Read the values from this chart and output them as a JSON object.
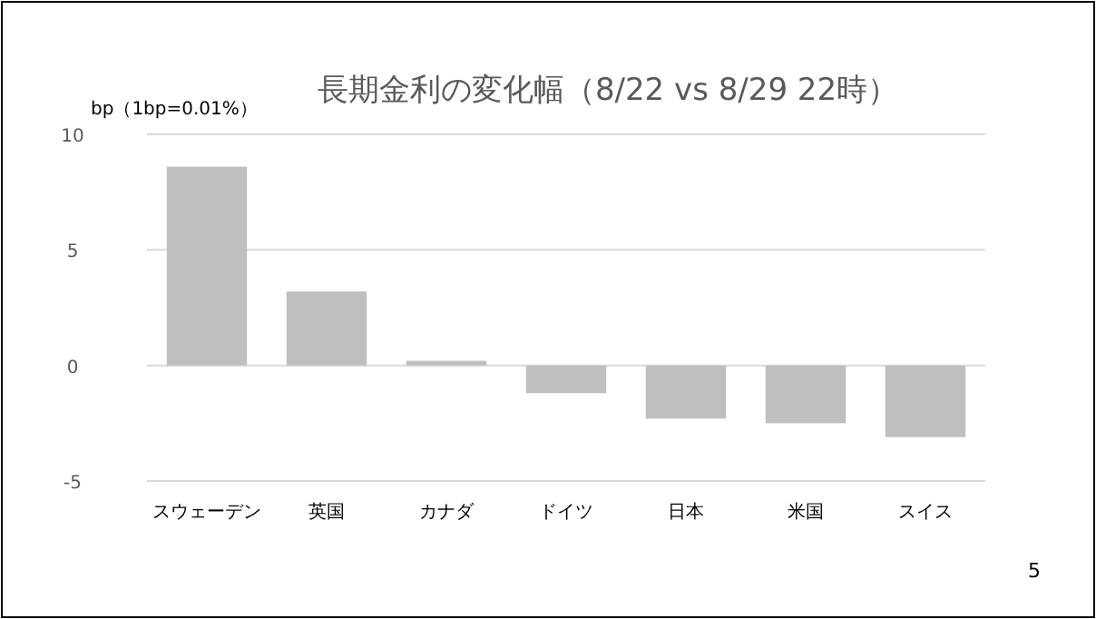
{
  "chart_data": {
    "type": "bar",
    "title": "長期金利の変化幅（8/22 vs 8/29 22時）",
    "ylabel": "bp（1bp=0.01%）",
    "categories": [
      "スウェーデン",
      "英国",
      "カナダ",
      "ドイツ",
      "日本",
      "米国",
      "スイス"
    ],
    "values": [
      8.6,
      3.2,
      0.2,
      -1.2,
      -2.3,
      -2.5,
      -3.1
    ],
    "color": "#bfbfbf",
    "ylim": [
      -5,
      10
    ],
    "yticks": [
      -5,
      0,
      5,
      10
    ],
    "grid": "y",
    "annotations": [
      "5"
    ]
  }
}
